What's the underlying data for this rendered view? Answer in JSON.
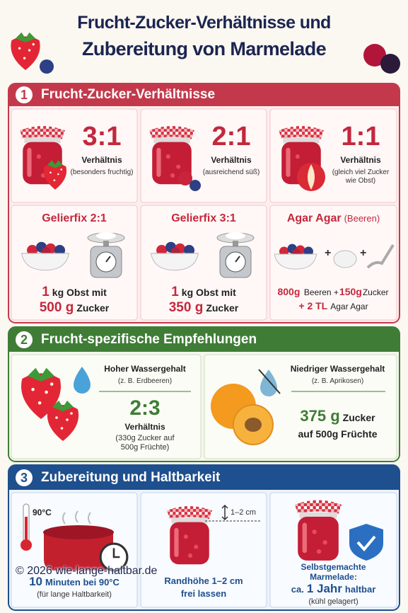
{
  "header": {
    "title_lines": [
      "Frucht-Zucker-Verhältnisse und",
      "Zubereitung von Marmelade"
    ]
  },
  "sections": [
    {
      "number": "1",
      "title": "Frucht-Zucker-Verhältnisse",
      "ratios": [
        {
          "value": "3:1",
          "label": "Verhältnis",
          "note": "(besonders fruchtig)"
        },
        {
          "value": "2:1",
          "label": "Verhältnis",
          "note": "(ausreichend süß)"
        },
        {
          "value": "1:1",
          "label": "Verhältnis",
          "note": "(gleich viel Zucker wie Obst)"
        }
      ],
      "recipes": [
        {
          "title": "Gelierfix 2:1",
          "lines": [
            [
              "1",
              "kg Obst mit"
            ],
            [
              "500 g",
              "Zucker"
            ]
          ]
        },
        {
          "title": "Gelierfix 3:1",
          "lines": [
            [
              "1",
              "kg Obst mit"
            ],
            [
              "350 g",
              "Zucker"
            ]
          ]
        },
        {
          "title": "Agar Agar",
          "subtitle": "(Beeren)",
          "lines": [
            [
              "800g",
              "Beeren +",
              "150g",
              "Zucker"
            ],
            [
              "+ 2 TL",
              "Agar Agar"
            ]
          ]
        }
      ]
    },
    {
      "number": "2",
      "title": "Frucht-spezifische Empfehlungen",
      "items": [
        {
          "heading": "Hoher Wassergehalt",
          "example": "(z. B. Erdbeeren)",
          "value": "2:3",
          "label": "Verhältnis",
          "note": "(330g Zucker auf 500g Früchte)"
        },
        {
          "heading": "Niedriger Wassergehalt",
          "example": "(z. B. Aprikosen)",
          "lines": [
            [
              "375 g",
              "Zucker"
            ],
            [
              "auf 500g Früchte"
            ]
          ]
        }
      ]
    },
    {
      "number": "3",
      "title": "Zubereitung und Haltbarkeit",
      "steps": [
        {
          "icon_label": "90°C",
          "lines": [
            [
              "10",
              "Minuten bei 90°C"
            ]
          ],
          "note": "(für lange Haltbarkeit)"
        },
        {
          "icon_label": "1–2 cm",
          "lines": [
            [
              "Randhöhe 1–2 cm"
            ],
            [
              "frei lassen"
            ]
          ]
        },
        {
          "lines": [
            [
              "Selbstgemachte"
            ],
            [
              "Marmelade:"
            ],
            [
              "ca.",
              "1 Jahr",
              "haltbar"
            ]
          ],
          "note": "(kühl gelagert)"
        }
      ]
    }
  ],
  "footer": {
    "copyright": "© 2026 wie-lange-haltbar.de"
  }
}
